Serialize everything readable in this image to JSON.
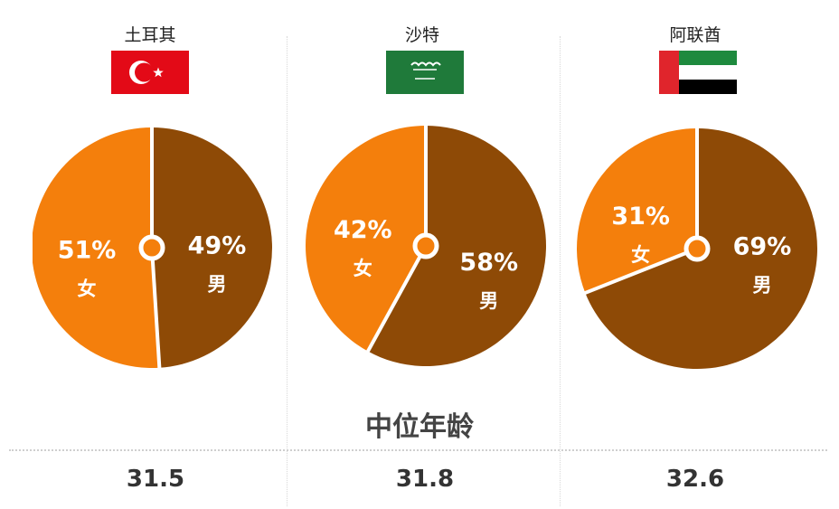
{
  "colors": {
    "female": "#F47F0C",
    "male": "#8E4A06",
    "separator": "#ffffff"
  },
  "chart_data": [
    {
      "type": "pie",
      "title": "土耳其",
      "flag_icon": "turkey-flag-icon",
      "slices": [
        {
          "label": "女",
          "value": 51,
          "display": "51%"
        },
        {
          "label": "男",
          "value": 49,
          "display": "49%"
        }
      ]
    },
    {
      "type": "pie",
      "title": "沙特",
      "flag_icon": "saudi-arabia-flag-icon",
      "slices": [
        {
          "label": "女",
          "value": 42,
          "display": "42%"
        },
        {
          "label": "男",
          "value": 58,
          "display": "58%"
        }
      ]
    },
    {
      "type": "pie",
      "title": "阿联酋",
      "flag_icon": "uae-flag-icon",
      "slices": [
        {
          "label": "女",
          "value": 31,
          "display": "31%"
        },
        {
          "label": "男",
          "value": 69,
          "display": "69%"
        }
      ]
    }
  ],
  "median_age": {
    "title": "中位年龄",
    "values": [
      "31.5",
      "31.8",
      "32.6"
    ]
  }
}
